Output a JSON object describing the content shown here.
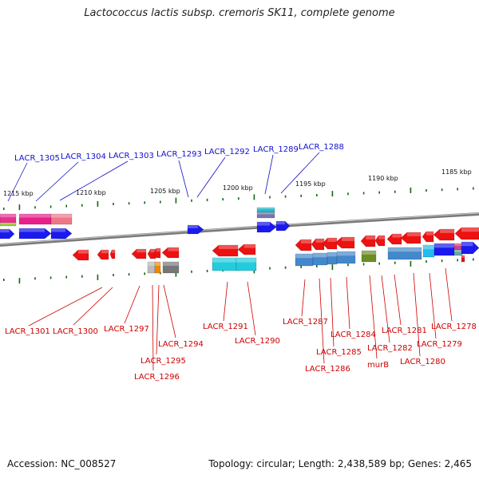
{
  "title": "Lactococcus lactis subsp. cremoris SK11, complete genome",
  "accession": "Accession: NC_008527",
  "topology": "Topology: circular; Length: 2,438,589 bp; Genes: 2,465",
  "colors": {
    "forward_gene": "#1a1aee",
    "reverse_gene": "#ee1111",
    "label_forward": "#1010cc",
    "label_reverse": "#cc0000",
    "backbone": "#888888",
    "tick": "#116611"
  },
  "ruler_labels": [
    "1215 kbp",
    "1210 kbp",
    "1205 kbp",
    "1200 kbp",
    "1195 kbp",
    "1190 kbp",
    "1185 kbp"
  ],
  "forward_labels": [
    "LACR_1305",
    "LACR_1304",
    "LACR_1303",
    "LACR_1293",
    "LACR_1292",
    "LACR_1289",
    "LACR_1288"
  ],
  "reverse_labels": [
    "LACR_1301",
    "LACR_1300",
    "LACR_1297",
    "LACR_1294",
    "LACR_1295",
    "LACR_1296",
    "LACR_1291",
    "LACR_1290",
    "LACR_1287",
    "LACR_1284",
    "LACR_1285",
    "LACR_1286",
    "LACR_1281",
    "murB",
    "LACR_1282",
    "LACR_1279",
    "LACR_1280",
    "LACR_1278"
  ]
}
